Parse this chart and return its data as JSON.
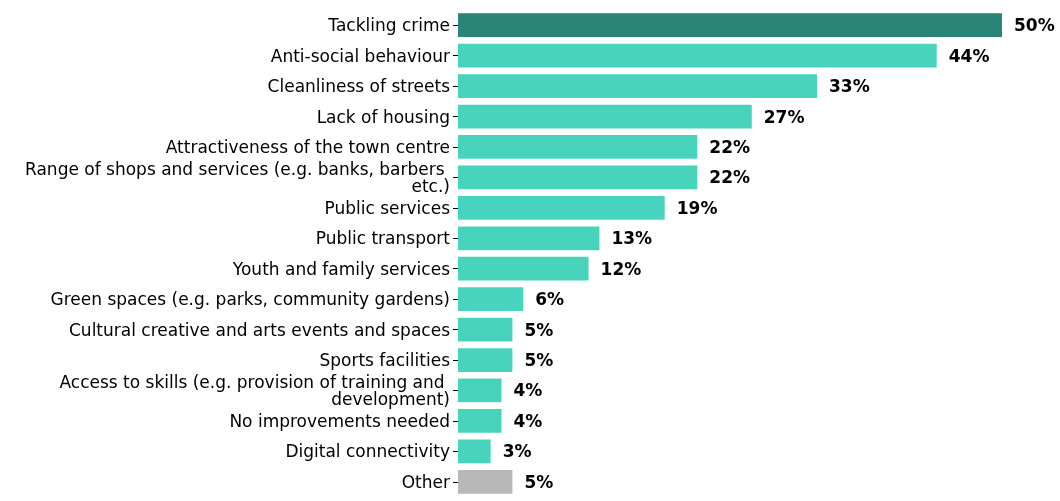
{
  "chart_data": {
    "type": "bar",
    "orientation": "horizontal",
    "categories": [
      "Tackling crime",
      "Anti-social behaviour",
      "Cleanliness of streets",
      "Lack of housing",
      "Attractiveness of the town centre",
      "Range of shops and services (e.g. banks, barbers etc.)",
      "Public services",
      "Public transport",
      "Youth and family services",
      "Green spaces (e.g. parks, community gardens)",
      "Cultural creative and arts events and spaces",
      "Sports facilities",
      "Access to skills (e.g. provision of training and development)",
      "No improvements needed",
      "Digital connectivity",
      "Other"
    ],
    "values": [
      50,
      44,
      33,
      27,
      22,
      22,
      19,
      13,
      12,
      6,
      5,
      5,
      4,
      4,
      3,
      5
    ],
    "value_labels": [
      "50%",
      "44%",
      "33%",
      "27%",
      "22%",
      "22%",
      "19%",
      "13%",
      "12%",
      "6%",
      "5%",
      "5%",
      "4%",
      "4%",
      "3%",
      "5%"
    ],
    "colors": [
      "#2a8577",
      "#48d4bc",
      "#48d4bc",
      "#48d4bc",
      "#48d4bc",
      "#48d4bc",
      "#48d4bc",
      "#48d4bc",
      "#48d4bc",
      "#48d4bc",
      "#48d4bc",
      "#48d4bc",
      "#48d4bc",
      "#48d4bc",
      "#48d4bc",
      "#b8b8b8"
    ],
    "grid": false
  }
}
